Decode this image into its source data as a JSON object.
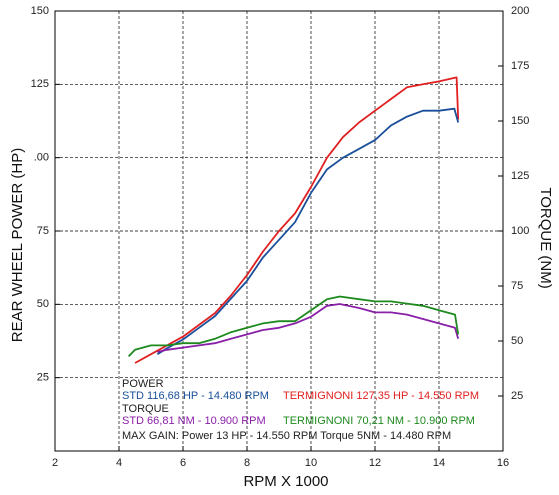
{
  "chart_data": {
    "type": "line",
    "y_label": "REAR WHEEL POWER (HP)",
    "y2_label": "TORQUE (NM)",
    "x_label": "RPM X 1000",
    "xlim": [
      2,
      16
    ],
    "xticks": [
      2,
      4,
      6,
      8,
      10,
      12,
      14,
      16
    ],
    "ylim": [
      0,
      150
    ],
    "yticks": [
      25,
      50,
      75,
      {
        "value": 100,
        "label": ".00"
      },
      125,
      150
    ],
    "y2lim": [
      0,
      200
    ],
    "y2ticks": [
      25,
      50,
      75,
      100,
      125,
      150,
      175,
      200
    ],
    "grid": true,
    "series": [
      {
        "name": "TERMIGNONI power",
        "color": "#e02020",
        "x": [
          4.5,
          5,
          5.5,
          6,
          6.5,
          7,
          7.5,
          8,
          8.5,
          9,
          9.5,
          10,
          10.5,
          11,
          11.5,
          12,
          12.5,
          13,
          13.5,
          14,
          14.55,
          14.6
        ],
        "values": [
          30,
          33,
          36,
          39,
          43,
          47,
          53,
          60,
          68,
          75,
          81,
          90,
          100,
          107,
          112,
          116,
          120,
          124,
          125,
          126,
          127.35,
          113
        ]
      },
      {
        "name": "STD power",
        "color": "#1a4f9a",
        "x": [
          5.2,
          5.5,
          6,
          6.5,
          7,
          7.5,
          8,
          8.5,
          9,
          9.5,
          10,
          10.5,
          11,
          11.5,
          12,
          12.5,
          13,
          13.5,
          14,
          14.48,
          14.6
        ],
        "values": [
          33,
          35,
          38,
          42,
          46,
          52,
          58,
          66,
          72,
          78,
          88,
          96,
          100,
          103,
          106,
          111,
          114,
          116,
          116,
          116.68,
          112
        ]
      },
      {
        "name": "STD torque",
        "color": "#8a1fa8",
        "axis": "y2",
        "x": [
          5.2,
          5.5,
          6,
          6.5,
          7,
          7.5,
          8,
          8.5,
          9,
          9.5,
          10,
          10.5,
          10.9,
          11.5,
          12,
          12.5,
          13,
          13.5,
          14,
          14.5,
          14.6
        ],
        "values": [
          45,
          46,
          47,
          48,
          49,
          51,
          53,
          55,
          56,
          58,
          61,
          66,
          66.81,
          65,
          63,
          63,
          62,
          60,
          58,
          56,
          51
        ]
      },
      {
        "name": "TERMIGNONI torque",
        "color": "#1e8a1e",
        "axis": "y2",
        "x": [
          4.3,
          4.5,
          5,
          5.5,
          6,
          6.5,
          7,
          7.5,
          8,
          8.5,
          9,
          9.5,
          10,
          10.5,
          10.9,
          11.5,
          12,
          12.5,
          13,
          13.5,
          14,
          14.5,
          14.6
        ],
        "values": [
          43,
          46,
          48,
          48,
          49,
          49,
          51,
          54,
          56,
          58,
          59,
          59,
          64,
          69,
          70.21,
          69,
          68,
          68,
          67,
          66,
          64,
          62,
          53
        ]
      }
    ],
    "legend": {
      "power_title": "POWER",
      "power_std": "STD 116,68 HP - 14.480 RPM",
      "power_termignoni": "TERMIGNONI 127,35 HP - 14.550 RPM",
      "torque_title": "TORQUE",
      "torque_std": "STD  66,81 NM - 10.900 RPM",
      "torque_termignoni": "TERMIGNONI  70,21 NM - 10.900 RPM",
      "max_gain": "MAX GAIN: Power 13 HP - 14.550 RPM    Torque    5NM - 14.480 RPM"
    }
  }
}
